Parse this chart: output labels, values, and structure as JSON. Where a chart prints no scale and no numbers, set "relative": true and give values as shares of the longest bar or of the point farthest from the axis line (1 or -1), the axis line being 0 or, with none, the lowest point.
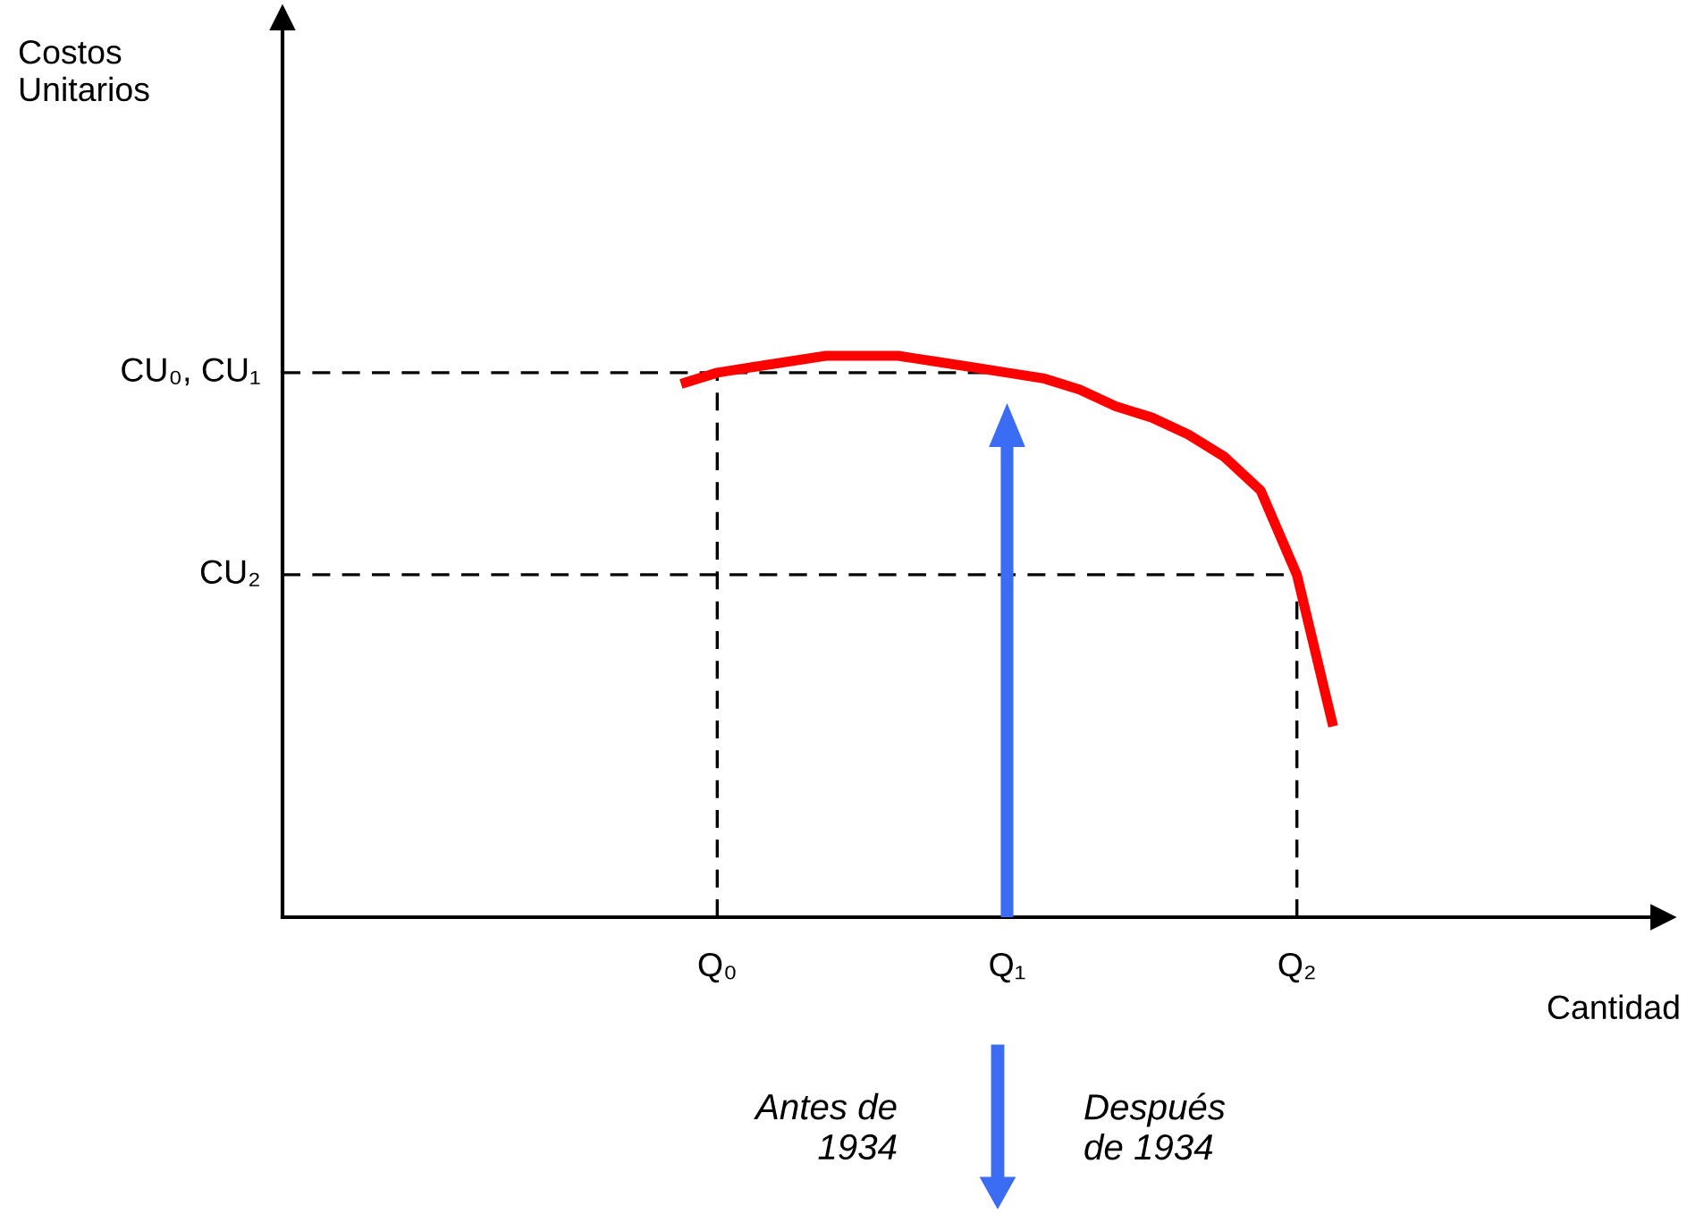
{
  "chart_data": {
    "type": "line",
    "relative": true,
    "categories": [
      null,
      "Q₀",
      null,
      null,
      null,
      null,
      null,
      null,
      null,
      "Q₁",
      null,
      null,
      null,
      null,
      null,
      null,
      null,
      "Q₂",
      null
    ],
    "series": [
      {
        "color": "#ff0000",
        "values": [
          0.95,
          0.97,
          0.98,
          0.99,
          1,
          1,
          1,
          0.99,
          0.98,
          0.97,
          0.96,
          0.94,
          0.91,
          0.89,
          0.86,
          0.82,
          0.76,
          0.61,
          0.34
        ]
      }
    ],
    "ref_lines": [
      {
        "axis": "y",
        "value": 0.97,
        "label": "CU₀, CU₁",
        "color": "#000000",
        "line_style": "dashed"
      },
      {
        "axis": "y",
        "value": 0.61,
        "label": "CU₂",
        "color": "#000000",
        "line_style": "dashed"
      },
      {
        "axis": "x",
        "value": "Q₀",
        "color": "#000000",
        "line_style": "dashed"
      },
      {
        "axis": "x",
        "value": "Q₂",
        "color": "#000000",
        "line_style": "dashed"
      }
    ],
    "annotations": [
      "Costos\nUnitarios",
      "Cantidad",
      "Antes de\n1934",
      "Después\nde 1934"
    ],
    "grid": false,
    "legend": false,
    "marker": "none",
    "line_style": "solid"
  }
}
